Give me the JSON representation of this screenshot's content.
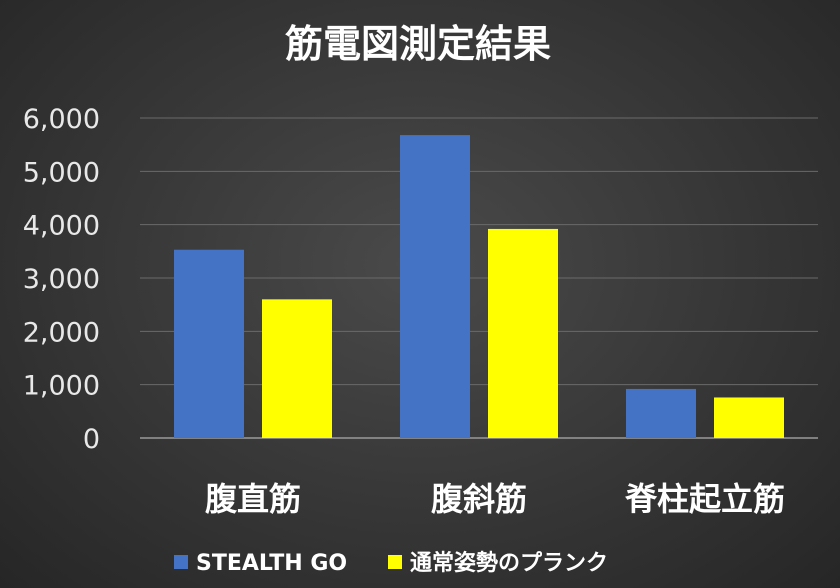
{
  "chart_data": {
    "type": "bar",
    "title": "筋電図測定結果",
    "xlabel": "",
    "ylabel": "",
    "categories": [
      "腹直筋",
      "腹斜筋",
      "脊柱起立筋"
    ],
    "series": [
      {
        "name": "STEALTH GO",
        "color": "#4472c4",
        "values": [
          3530,
          5680,
          920
        ]
      },
      {
        "name": "通常姿勢のプランク",
        "color": "#ffff00",
        "values": [
          2600,
          3920,
          760
        ]
      }
    ],
    "ylim": [
      0,
      6000
    ],
    "yticks": [
      0,
      1000,
      2000,
      3000,
      4000,
      5000,
      6000
    ],
    "ytick_labels": [
      "0",
      "1,000",
      "2,000",
      "3,000",
      "4,000",
      "5,000",
      "6,000"
    ],
    "grid": true,
    "legend_position": "bottom"
  }
}
